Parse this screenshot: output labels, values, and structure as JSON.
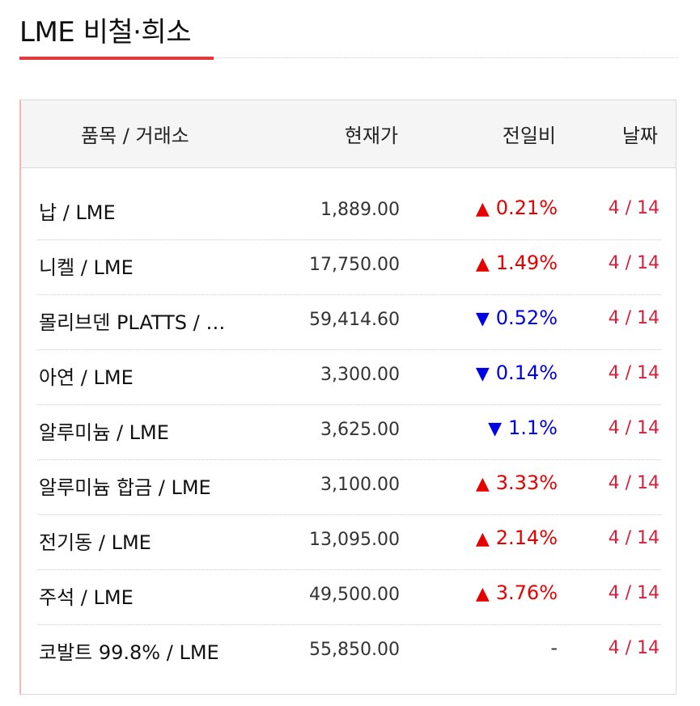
{
  "page": {
    "title": "LME 비철·희소"
  },
  "table": {
    "headers": {
      "item": "품목 / 거래소",
      "price": "현재가",
      "change": "전일비",
      "date": "날짜"
    },
    "rows": [
      {
        "item": "납 / LME",
        "price": "1,889.00",
        "change": "0.21%",
        "direction": "up",
        "arrow": "▲",
        "date": "4 / 14"
      },
      {
        "item": "니켈 / LME",
        "price": "17,750.00",
        "change": "1.49%",
        "direction": "up",
        "arrow": "▲",
        "date": "4 / 14"
      },
      {
        "item": "몰리브덴 PLATTS / …",
        "price": "59,414.60",
        "change": "0.52%",
        "direction": "down",
        "arrow": "▼",
        "date": "4 / 14"
      },
      {
        "item": "아연 / LME",
        "price": "3,300.00",
        "change": "0.14%",
        "direction": "down",
        "arrow": "▼",
        "date": "4 / 14"
      },
      {
        "item": "알루미늄 / LME",
        "price": "3,625.00",
        "change": "1.1%",
        "direction": "down",
        "arrow": "▼",
        "date": "4 / 14"
      },
      {
        "item": "알루미늄 합금 / LME",
        "price": "3,100.00",
        "change": "3.33%",
        "direction": "up",
        "arrow": "▲",
        "date": "4 / 14"
      },
      {
        "item": "전기동 / LME",
        "price": "13,095.00",
        "change": "2.14%",
        "direction": "up",
        "arrow": "▲",
        "date": "4 / 14"
      },
      {
        "item": "주석 / LME",
        "price": "49,500.00",
        "change": "3.76%",
        "direction": "up",
        "arrow": "▲",
        "date": "4 / 14"
      },
      {
        "item": "코발트 99.8% / LME",
        "price": "55,850.00",
        "change": "-",
        "direction": "flat",
        "arrow": "",
        "date": "4 / 14"
      }
    ]
  },
  "colors": {
    "accent": "#e03a3e",
    "up": "#e60000",
    "down": "#0000e6",
    "date": "#d6203a"
  }
}
